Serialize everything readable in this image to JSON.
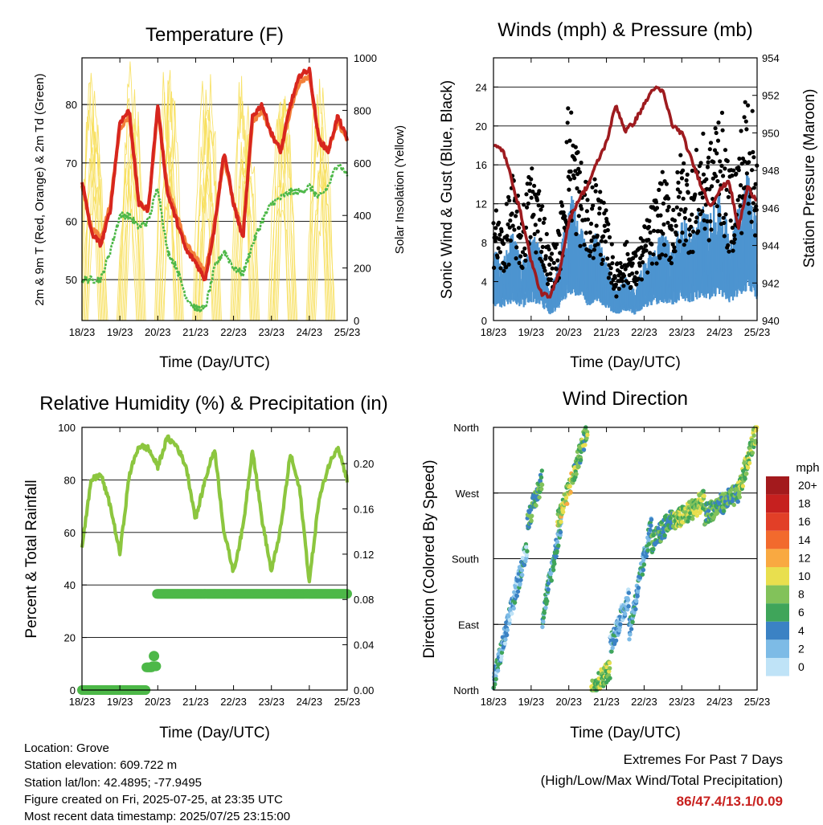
{
  "panels": {
    "temperature": {
      "title": "Temperature (F)",
      "ylabel_left": "2m & 9m T (Red, Orange) & 2m Td (Green)",
      "ylabel_right": "Solar Insolation (Yellow)",
      "xlabel": "Time (Day/UTC)"
    },
    "winds": {
      "title": "Winds (mph) & Pressure (mb)",
      "ylabel_left": "Sonic Wind & Gust (Blue, Black)",
      "ylabel_right": "Station Pressure (Maroon)",
      "xlabel": "Time (Day/UTC)"
    },
    "humidity": {
      "title": "Relative Humidity (%) & Precipitation (in)",
      "ylabel_left": "Percent & Total Rainfall",
      "xlabel": "Time (Day/UTC)"
    },
    "direction": {
      "title": "Wind Direction",
      "ylabel_left": "Direction (Colored By Speed)",
      "xlabel": "Time (Day/UTC)",
      "legend_title": "mph"
    }
  },
  "footer": {
    "location": "Location: Grove",
    "elevation": "Station elevation: 609.722 m",
    "latlon": "Station lat/lon: 42.4895; -77.9495",
    "created": "Figure created on Fri, 2025-07-25, at 23:35 UTC",
    "recent": "Most recent data timestamp: 2025/07/25 23:15:00"
  },
  "extremes": {
    "heading": "Extremes For Past 7 Days",
    "subheading": "(High/Low/Max Wind/Total Precipitation)",
    "values": "86/47.4/13.1/0.09"
  },
  "colors": {
    "temp_2m": "#d7261e",
    "temp_9m": "#f3803a",
    "dewpoint": "#4db848",
    "solar": "#f7df5a",
    "wind": "#4d94d0",
    "gust": "#000000",
    "pressure": "#9e1b1f",
    "rh": "#8cc63f",
    "precip": "#4db848"
  },
  "chart_data": [
    {
      "type": "line",
      "title": "Temperature (F)",
      "xlabel": "Time (Day/UTC)",
      "ylabel": "2m & 9m T (Red, Orange) & 2m Td (Green)",
      "ylabel_right": "Solar Insolation (Yellow)",
      "x_ticks": [
        "18/23",
        "19/23",
        "20/23",
        "21/23",
        "22/23",
        "23/23",
        "24/23",
        "25/23"
      ],
      "ylim": [
        43,
        88
      ],
      "y_ticks": [
        50,
        60,
        70,
        80
      ],
      "ylim_right": [
        0,
        1000
      ],
      "y_ticks_right": [
        0,
        200,
        400,
        600,
        800,
        1000
      ],
      "grid": true,
      "x": [
        0,
        0.25,
        0.5,
        0.75,
        1,
        1.25,
        1.5,
        1.75,
        2,
        2.25,
        2.5,
        2.75,
        3,
        3.25,
        3.5,
        3.75,
        4,
        4.25,
        4.5,
        4.75,
        5,
        5.25,
        5.5,
        5.75,
        6,
        6.25,
        6.5,
        6.75,
        7
      ],
      "series": [
        {
          "name": "2m T",
          "values": [
            67,
            58,
            56,
            62,
            77,
            79,
            63,
            62,
            80,
            65,
            60,
            55,
            53,
            50,
            59,
            72,
            63,
            57,
            78,
            80,
            75,
            72,
            80,
            85,
            86,
            74,
            72,
            78,
            74
          ]
        },
        {
          "name": "9m T",
          "values": [
            66,
            59,
            57,
            63,
            76,
            78,
            63,
            62,
            79,
            66,
            61,
            56,
            54,
            51,
            60,
            71,
            63,
            58,
            77,
            79,
            75,
            72,
            79,
            84,
            85,
            74,
            72,
            77,
            74
          ]
        },
        {
          "name": "2m Td",
          "values": [
            50,
            50,
            50,
            55,
            61,
            61,
            59,
            60,
            66,
            55,
            52,
            47,
            45,
            45,
            52,
            55,
            52,
            51,
            56,
            60,
            63,
            64,
            65,
            65,
            66,
            64,
            66,
            70,
            68
          ]
        },
        {
          "name": "Solar Insolation",
          "axis": "right",
          "peaks": [
            1000,
            1000,
            1000,
            1000,
            1000,
            1000,
            1000
          ]
        }
      ]
    },
    {
      "type": "scatter",
      "title": "Winds (mph) & Pressure (mb)",
      "xlabel": "Time (Day/UTC)",
      "ylabel": "Sonic Wind & Gust (Blue, Black)",
      "ylabel_right": "Station Pressure (Maroon)",
      "x_ticks": [
        "18/23",
        "19/23",
        "20/23",
        "21/23",
        "22/23",
        "23/23",
        "24/23",
        "25/23"
      ],
      "ylim": [
        0,
        27
      ],
      "y_ticks": [
        0,
        4,
        8,
        12,
        16,
        20,
        24
      ],
      "ylim_right": [
        940,
        954
      ],
      "y_ticks_right": [
        940,
        942,
        944,
        946,
        948,
        950,
        952,
        954
      ],
      "grid": true,
      "x": [
        0,
        0.25,
        0.5,
        0.75,
        1,
        1.25,
        1.5,
        1.75,
        2,
        2.25,
        2.5,
        2.75,
        3,
        3.25,
        3.5,
        3.75,
        4,
        4.25,
        4.5,
        4.75,
        5,
        5.25,
        5.5,
        5.75,
        6,
        6.25,
        6.5,
        6.75,
        7
      ],
      "series": [
        {
          "name": "Sonic Wind",
          "values": [
            5,
            4,
            6,
            4,
            6,
            5,
            2,
            4,
            9,
            7,
            5,
            6,
            4,
            2,
            3,
            2,
            4,
            5,
            6,
            5,
            7,
            6,
            8,
            7,
            9,
            6,
            8,
            10,
            7
          ]
        },
        {
          "name": "Gust",
          "values": [
            9,
            7,
            11,
            8,
            12,
            10,
            5,
            7,
            17,
            13,
            10,
            11,
            8,
            4,
            6,
            5,
            7,
            9,
            11,
            9,
            13,
            11,
            14,
            13,
            17,
            11,
            13,
            18,
            13
          ]
        },
        {
          "name": "Station Pressure",
          "axis": "right",
          "values": [
            949.3,
            949.1,
            947.4,
            945.5,
            943.2,
            941.5,
            941.2,
            942.6,
            945.3,
            946.4,
            947.2,
            948.4,
            949.5,
            951.5,
            950.1,
            950.6,
            951.5,
            952.4,
            952.2,
            950.4,
            950.0,
            948.6,
            947.3,
            946.1,
            946.9,
            947.5,
            944.9,
            947.1,
            946.4
          ]
        }
      ]
    },
    {
      "type": "line",
      "title": "Relative Humidity (%) & Precipitation (in)",
      "xlabel": "Time (Day/UTC)",
      "ylabel": "Percent & Total Rainfall",
      "x_ticks": [
        "18/23",
        "19/23",
        "20/23",
        "21/23",
        "22/23",
        "23/23",
        "24/23",
        "25/23"
      ],
      "ylim": [
        0,
        100
      ],
      "y_ticks": [
        0,
        20,
        40,
        60,
        80,
        100
      ],
      "ylim_right": [
        0,
        0.232
      ],
      "y_ticks_right": [
        "0.00",
        "0.04",
        "0.08",
        "0.12",
        "0.16",
        "0.20"
      ],
      "grid": true,
      "x": [
        0,
        0.25,
        0.5,
        0.75,
        1,
        1.25,
        1.5,
        1.75,
        2,
        2.25,
        2.5,
        2.75,
        3,
        3.25,
        3.5,
        3.75,
        4,
        4.25,
        4.5,
        4.75,
        5,
        5.25,
        5.5,
        5.75,
        6,
        6.25,
        6.5,
        6.75,
        7
      ],
      "series": [
        {
          "name": "Relative Humidity",
          "values": [
            55,
            80,
            82,
            70,
            52,
            82,
            93,
            92,
            85,
            96,
            93,
            85,
            65,
            80,
            92,
            60,
            45,
            62,
            92,
            65,
            45,
            62,
            90,
            76,
            41,
            72,
            85,
            93,
            80
          ]
        },
        {
          "name": "Total Rainfall",
          "axis": "right",
          "x": [
            0,
            1.8,
            1.75,
            1.85,
            1.9,
            2.0,
            7.0
          ],
          "values": [
            0,
            0,
            0.02,
            0.02,
            0.03,
            0.085,
            0.085
          ]
        }
      ]
    },
    {
      "type": "scatter",
      "title": "Wind Direction",
      "xlabel": "Time (Day/UTC)",
      "ylabel": "Direction (Colored By Speed)",
      "x_ticks": [
        "18/23",
        "19/23",
        "20/23",
        "21/23",
        "22/23",
        "23/23",
        "24/23",
        "25/23"
      ],
      "y_categories": [
        "North",
        "East",
        "South",
        "West",
        "North"
      ],
      "ylim": [
        0,
        360
      ],
      "grid": true,
      "legend_title": "mph",
      "legend": [
        {
          "label": "20+",
          "color": "#a31a1d"
        },
        {
          "label": "18",
          "color": "#c6201f"
        },
        {
          "label": "16",
          "color": "#e23f27"
        },
        {
          "label": "14",
          "color": "#f26a2d"
        },
        {
          "label": "12",
          "color": "#f9a941"
        },
        {
          "label": "10",
          "color": "#e9df4e"
        },
        {
          "label": "8",
          "color": "#82c25a"
        },
        {
          "label": "6",
          "color": "#3fa55a"
        },
        {
          "label": "4",
          "color": "#3b82c4"
        },
        {
          "label": "2",
          "color": "#7dbbe6"
        },
        {
          "label": "0",
          "color": "#bfe3f7"
        }
      ],
      "segments": [
        {
          "x": [
            0.0,
            0.9
          ],
          "y": [
            10,
            200
          ],
          "speed": 3
        },
        {
          "x": [
            0.9,
            1.3
          ],
          "y": [
            230,
            290
          ],
          "speed": 6
        },
        {
          "x": [
            1.3,
            1.8
          ],
          "y": [
            100,
            230
          ],
          "speed": 4
        },
        {
          "x": [
            1.7,
            2.1
          ],
          "y": [
            230,
            290
          ],
          "speed": 9
        },
        {
          "x": [
            2.1,
            2.5
          ],
          "y": [
            290,
            360
          ],
          "speed": 7
        },
        {
          "x": [
            2.6,
            3.1
          ],
          "y": [
            0,
            30
          ],
          "speed": 8
        },
        {
          "x": [
            3.1,
            3.6
          ],
          "y": [
            60,
            130
          ],
          "speed": 3
        },
        {
          "x": [
            3.6,
            4.2
          ],
          "y": [
            80,
            230
          ],
          "speed": 4
        },
        {
          "x": [
            4.2,
            4.8
          ],
          "y": [
            200,
            240
          ],
          "speed": 6
        },
        {
          "x": [
            4.8,
            5.6
          ],
          "y": [
            230,
            260
          ],
          "speed": 8
        },
        {
          "x": [
            5.6,
            6.5
          ],
          "y": [
            240,
            270
          ],
          "speed": 6
        },
        {
          "x": [
            6.5,
            7.0
          ],
          "y": [
            270,
            360
          ],
          "speed": 8
        }
      ]
    }
  ]
}
